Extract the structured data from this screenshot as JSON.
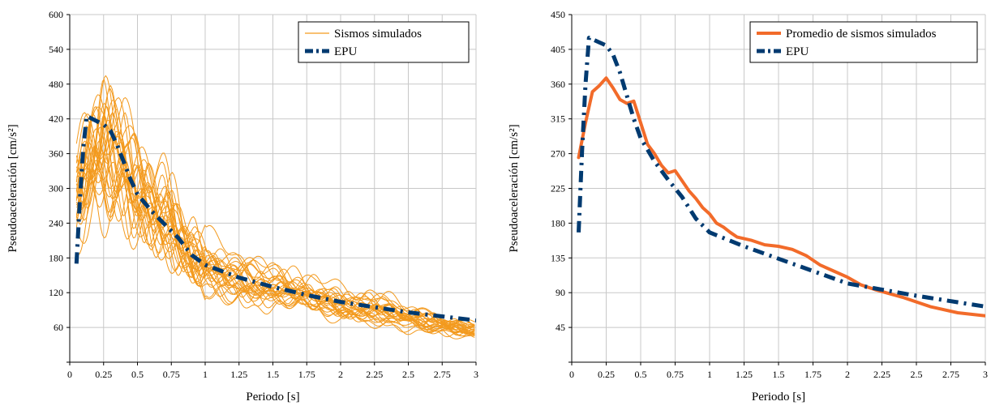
{
  "chart_data": [
    {
      "type": "line",
      "title": "",
      "xlabel": "Periodo [s]",
      "ylabel": "Pseudoaceleración [cm/s²]",
      "xlim": [
        0,
        3
      ],
      "ylim": [
        0,
        600
      ],
      "xticks": [
        0,
        0.25,
        0.5,
        0.75,
        1,
        1.25,
        1.5,
        1.75,
        2,
        2.25,
        2.5,
        2.75,
        3
      ],
      "xtick_labels": [
        "0",
        "0.25",
        "0.5",
        "0.75",
        "1",
        "1.25",
        "1.5",
        "1.75",
        "2",
        "2.25",
        "2.5",
        "2.75",
        "3"
      ],
      "yticks": [
        0,
        60,
        120,
        180,
        240,
        300,
        360,
        420,
        480,
        540,
        600
      ],
      "ytick_labels": [
        "",
        "60",
        "120",
        "180",
        "240",
        "300",
        "360",
        "420",
        "480",
        "540",
        "600"
      ],
      "grid": true,
      "legend_position": "top-right",
      "series": [
        {
          "name": "Sismos simulados",
          "color": "#f39a1e",
          "style": "solid",
          "count": 30,
          "x": [
            0.05,
            0.1,
            0.15,
            0.2,
            0.25,
            0.3,
            0.35,
            0.4,
            0.45,
            0.5,
            0.6,
            0.7,
            0.8,
            0.9,
            1.0,
            1.1,
            1.2,
            1.3,
            1.4,
            1.5,
            1.6,
            1.7,
            1.8,
            1.9,
            2.0,
            2.2,
            2.4,
            2.6,
            2.8,
            3.0
          ],
          "values": [
            300,
            330,
            360,
            365,
            370,
            360,
            345,
            335,
            310,
            290,
            255,
            240,
            210,
            185,
            170,
            160,
            148,
            140,
            132,
            128,
            122,
            116,
            110,
            105,
            100,
            92,
            82,
            72,
            62,
            56
          ]
        },
        {
          "name": "EPU",
          "color": "#003a70",
          "style": "dash-dot",
          "x": [
            0.05,
            0.075,
            0.1,
            0.125,
            0.15,
            0.25,
            0.3,
            0.35,
            0.4,
            0.45,
            0.5,
            0.6,
            0.7,
            0.8,
            0.9,
            1.0,
            1.25,
            1.5,
            1.75,
            2.0,
            2.25,
            2.5,
            2.75,
            3.0
          ],
          "values": [
            170,
            280,
            370,
            425,
            422,
            410,
            400,
            375,
            345,
            315,
            290,
            262,
            238,
            215,
            185,
            168,
            146,
            130,
            116,
            104,
            95,
            86,
            79,
            72
          ]
        }
      ]
    },
    {
      "type": "line",
      "title": "",
      "xlabel": "Periodo [s]",
      "ylabel": "Pseudoaceleración [cm/s²]",
      "xlim": [
        0,
        3
      ],
      "ylim": [
        0,
        450
      ],
      "xticks": [
        0,
        0.25,
        0.5,
        0.75,
        1,
        1.25,
        1.5,
        1.75,
        2,
        2.25,
        2.5,
        2.75,
        3
      ],
      "xtick_labels": [
        "0",
        "0.25",
        "0.5",
        "0.75",
        "1",
        "1.25",
        "1.5",
        "1.75",
        "2",
        "2.25",
        "2.5",
        "2.75",
        "3"
      ],
      "yticks": [
        0,
        45,
        90,
        135,
        180,
        225,
        270,
        315,
        360,
        405,
        450
      ],
      "ytick_labels": [
        "",
        "45",
        "90",
        "135",
        "180",
        "225",
        "270",
        "315",
        "360",
        "405",
        "450"
      ],
      "grid": true,
      "legend_position": "top-right",
      "series": [
        {
          "name": "Promedio de sismos simulados",
          "color": "#f26b2a",
          "style": "solid",
          "x": [
            0.05,
            0.1,
            0.15,
            0.2,
            0.25,
            0.3,
            0.35,
            0.4,
            0.45,
            0.5,
            0.55,
            0.6,
            0.65,
            0.7,
            0.75,
            0.8,
            0.85,
            0.9,
            0.95,
            1.0,
            1.05,
            1.1,
            1.15,
            1.2,
            1.3,
            1.4,
            1.5,
            1.6,
            1.7,
            1.8,
            1.9,
            2.0,
            2.1,
            2.2,
            2.4,
            2.6,
            2.8,
            3.0
          ],
          "values": [
            265,
            310,
            350,
            358,
            368,
            355,
            340,
            335,
            338,
            310,
            282,
            270,
            255,
            245,
            248,
            235,
            222,
            212,
            200,
            192,
            180,
            175,
            168,
            162,
            158,
            152,
            150,
            146,
            138,
            126,
            118,
            110,
            100,
            94,
            84,
            72,
            64,
            60
          ]
        },
        {
          "name": "EPU",
          "color": "#003a70",
          "style": "dash-dot",
          "x": [
            0.05,
            0.075,
            0.1,
            0.125,
            0.15,
            0.25,
            0.3,
            0.35,
            0.4,
            0.45,
            0.5,
            0.6,
            0.7,
            0.8,
            0.9,
            1.0,
            1.25,
            1.5,
            1.75,
            2.0,
            2.25,
            2.5,
            2.75,
            3.0
          ],
          "values": [
            168,
            275,
            360,
            420,
            418,
            410,
            398,
            375,
            345,
            315,
            290,
            260,
            236,
            214,
            186,
            168,
            150,
            134,
            118,
            102,
            94,
            86,
            79,
            72
          ]
        }
      ]
    }
  ]
}
